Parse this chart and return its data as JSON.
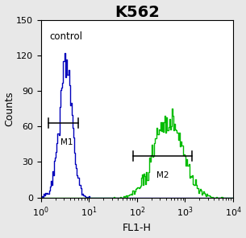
{
  "title": "K562",
  "xlabel": "FL1-H",
  "ylabel": "Counts",
  "xlim_log": [
    0,
    4
  ],
  "ylim": [
    0,
    150
  ],
  "yticks": [
    0,
    30,
    60,
    90,
    120,
    150
  ],
  "bg_color": "#e8e8e8",
  "plot_bg_color": "#ffffff",
  "control_color": "#0000bb",
  "sample_color": "#00bb00",
  "control_label": "control",
  "m1_label": "M1",
  "m2_label": "M2",
  "title_fontsize": 14,
  "axis_fontsize": 8,
  "label_fontsize": 9,
  "control_peak_log": 0.52,
  "control_std_log": 0.12,
  "control_n": 5000,
  "control_peak_count": 122,
  "sample_peak_log": 2.62,
  "sample_std_log": 0.28,
  "sample_n": 3000,
  "sample_peak_count": 75,
  "m1_x1_log": 0.15,
  "m1_x2_log": 0.78,
  "m1_y": 63,
  "m2_x1_log": 1.92,
  "m2_x2_log": 3.15,
  "m2_y": 35
}
